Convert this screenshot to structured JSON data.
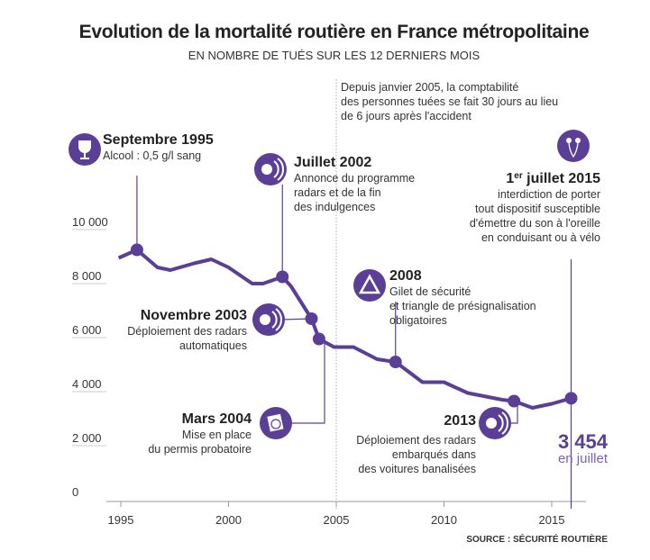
{
  "title": "Evolution de la mortalité routière en France métropolitaine",
  "subtitle": "EN NOMBRE DE TUÉS SUR LES 12 DERNIERS MOIS",
  "source": "SOURCE : SÉCURITÉ ROUTIÈRE",
  "colors": {
    "line": "#5b3f96",
    "icon_bg": "#5b3f96",
    "text": "#222222",
    "axis": "#999999"
  },
  "method_note": "Depuis janvier 2005, la comptabilité des personnes tuées se fait 30 jours au lieu de 6 jours après l'accident",
  "method_note_lines": [
    "Depuis janvier 2005, la comptabilité",
    "des personnes tuées se fait 30 jours au lieu",
    "de 6 jours après l'accident"
  ],
  "final": {
    "value": "3 454",
    "label": "en juillet"
  },
  "annotations": [
    {
      "icon": "wine-glass-icon",
      "title": "Septembre 1995",
      "lines": [
        "Alcool : 0,5 g/l sang"
      ]
    },
    {
      "icon": "radar-icon",
      "title": "Juillet 2002",
      "lines": [
        "Annonce du programme",
        "radars et de la fin",
        "des indulgences"
      ]
    },
    {
      "icon": "radar-icon",
      "title": "Novembre 2003",
      "lines": [
        "Déploiement des radars",
        "automatiques"
      ]
    },
    {
      "icon": "permit-icon",
      "title": "Mars 2004",
      "lines": [
        "Mise en place",
        "du permis probatoire"
      ]
    },
    {
      "icon": "warning-triangle-icon",
      "title": "2008",
      "lines": [
        "Gilet de sécurité",
        "et triangle de présignalisation",
        "obligatoires"
      ]
    },
    {
      "icon": "radar-icon",
      "title": "2013",
      "lines": [
        "Déploiement des radars",
        "embarqués dans",
        "des voitures banalisées"
      ]
    },
    {
      "icon": "earphones-icon",
      "title_sup": "er",
      "title_pre": "1",
      "title_post": " juillet 2015",
      "lines": [
        "interdiction de porter",
        "tout dispositif susceptible",
        "d'émettre du son à l'oreille",
        "en conduisant ou à vélo"
      ]
    }
  ],
  "chart_data": {
    "type": "line",
    "title": "Evolution de la mortalité routière en France métropolitaine",
    "subtitle": "EN NOMBRE DE TUÉS SUR LES 12 DERNIERS MOIS",
    "xlim": [
      1994.5,
      2016.5
    ],
    "ylim": [
      0,
      10000
    ],
    "x_ticks": [
      1995,
      2000,
      2005,
      2010,
      2015
    ],
    "x_tick_labels": [
      "1995",
      "2000",
      "2005",
      "2010",
      "2015"
    ],
    "y_ticks": [
      0,
      2000,
      4000,
      6000,
      8000,
      10000
    ],
    "y_tick_labels": [
      "0",
      "2 000",
      "4 000",
      "6 000",
      "8 000",
      "10 000"
    ],
    "grid": false,
    "legend": "none",
    "series": [
      {
        "x": [
          1994.9,
          1995.75,
          1996.7,
          1997.3,
          1998.4,
          1999.2,
          2000.0,
          2001.1,
          2001.6,
          2002.5,
          2002.9,
          2003.85,
          2004.2,
          2004.9,
          2005.8,
          2006.9,
          2007.75,
          2009.0,
          2010.0,
          2011.1,
          2012.7,
          2013.25,
          2014.1,
          2015.0,
          2015.9
        ],
        "y": [
          8650,
          8950,
          8300,
          8200,
          8450,
          8600,
          8300,
          7700,
          7700,
          7950,
          7600,
          6400,
          5650,
          5350,
          5350,
          4900,
          4800,
          4050,
          4050,
          3650,
          3400,
          3350,
          3100,
          3250,
          3454
        ]
      }
    ],
    "markers": [
      {
        "x": 1995.75,
        "y": 8950,
        "label": "Septembre 1995"
      },
      {
        "x": 2002.5,
        "y": 7950,
        "label": "Juillet 2002"
      },
      {
        "x": 2003.85,
        "y": 6400,
        "label": "Novembre 2003"
      },
      {
        "x": 2004.2,
        "y": 5650,
        "label": "Mars 2004"
      },
      {
        "x": 2007.75,
        "y": 4800,
        "label": "2008"
      },
      {
        "x": 2013.25,
        "y": 3350,
        "label": "2013"
      },
      {
        "x": 2015.9,
        "y": 3454,
        "label": "1er juillet 2015"
      }
    ],
    "vertical_reference": {
      "x": 2005,
      "style": "dotted"
    }
  }
}
